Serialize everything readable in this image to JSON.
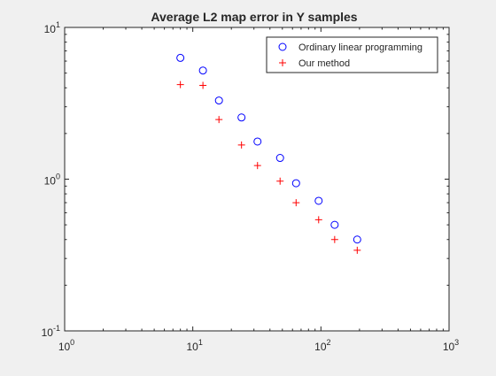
{
  "chart_data": {
    "type": "scatter",
    "title": "Average L2 map error in Y samples",
    "xlabel": "",
    "ylabel": "",
    "xscale": "log",
    "yscale": "log",
    "xlim": [
      1,
      1000
    ],
    "ylim": [
      0.1,
      10
    ],
    "grid": false,
    "legend_position": "top-right",
    "x_tick_labels": [
      {
        "base": "10",
        "exp": "0"
      },
      {
        "base": "10",
        "exp": "1"
      },
      {
        "base": "10",
        "exp": "2"
      },
      {
        "base": "10",
        "exp": "3"
      }
    ],
    "y_tick_labels": [
      {
        "base": "10",
        "exp": "-1"
      },
      {
        "base": "10",
        "exp": "0"
      },
      {
        "base": "10",
        "exp": "1"
      }
    ],
    "series": [
      {
        "name": "Ordinary linear programming",
        "marker": "circle",
        "color": "#0000ff",
        "points": [
          {
            "x": 8,
            "y": 6.3
          },
          {
            "x": 12,
            "y": 5.2
          },
          {
            "x": 16,
            "y": 3.3
          },
          {
            "x": 24,
            "y": 2.55
          },
          {
            "x": 32,
            "y": 1.77
          },
          {
            "x": 48,
            "y": 1.38
          },
          {
            "x": 64,
            "y": 0.94
          },
          {
            "x": 96,
            "y": 0.72
          },
          {
            "x": 128,
            "y": 0.5
          },
          {
            "x": 192,
            "y": 0.4
          }
        ]
      },
      {
        "name": "Our method",
        "marker": "plus",
        "color": "#ff0000",
        "points": [
          {
            "x": 8,
            "y": 4.2
          },
          {
            "x": 12,
            "y": 4.15
          },
          {
            "x": 16,
            "y": 2.47
          },
          {
            "x": 24,
            "y": 1.68
          },
          {
            "x": 32,
            "y": 1.23
          },
          {
            "x": 48,
            "y": 0.97
          },
          {
            "x": 64,
            "y": 0.7
          },
          {
            "x": 96,
            "y": 0.54
          },
          {
            "x": 128,
            "y": 0.4
          },
          {
            "x": 192,
            "y": 0.34
          }
        ]
      }
    ]
  }
}
